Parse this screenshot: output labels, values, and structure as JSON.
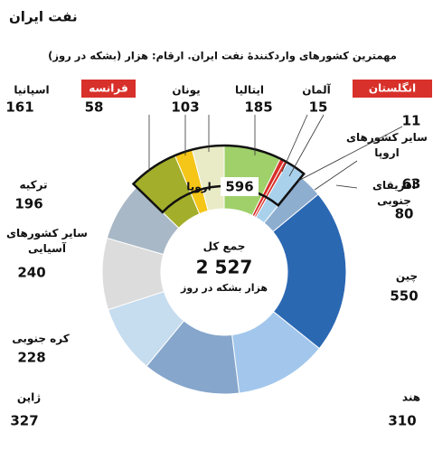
{
  "chart_data": {
    "type": "donut",
    "title": "نفت ایران",
    "subtitle": "مهمترین کشورهای واردکنندهٔ نفت ایران. ارقام: هزار (بشکه در روز)",
    "categories": [
      "ایتالیا",
      "آلمان",
      "انگلستان",
      "سایر کشورهای\nاروپا",
      "آفریقای\nجنوبی",
      "چین",
      "هند",
      "ژاپن",
      "کره جنوبی",
      "سایر کشورهای\nآسیایی",
      "ترکیه",
      "اسپانیا",
      "فرانسه",
      "یونان"
    ],
    "values": [
      185,
      15,
      11,
      63,
      80,
      550,
      310,
      327,
      228,
      240,
      196,
      161,
      58,
      103
    ],
    "colors": [
      "#9fd06a",
      "#d8302a",
      "#d8302a",
      "#a9d1ec",
      "#8eaed0",
      "#2b68b2",
      "#a3c7ec",
      "#86a6cb",
      "#c6dcef",
      "#dcdcdc",
      "#a8b8c6",
      "#a3ae2a",
      "#f5c518",
      "#e9ebc6"
    ],
    "group": {
      "label": "اروپا",
      "value": 596
    },
    "total_title": "جمع کل",
    "total": {
      "value": 2527,
      "label": "2 527"
    },
    "total_unit": "هزار بشکه در روز"
  }
}
